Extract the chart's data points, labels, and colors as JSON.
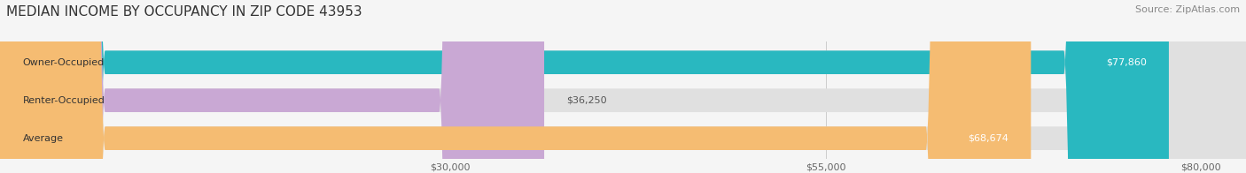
{
  "title": "MEDIAN INCOME BY OCCUPANCY IN ZIP CODE 43953",
  "source": "Source: ZipAtlas.com",
  "categories": [
    "Owner-Occupied",
    "Renter-Occupied",
    "Average"
  ],
  "values": [
    77860,
    36250,
    68674
  ],
  "bar_colors": [
    "#29b8c0",
    "#c9a8d4",
    "#f5bc72"
  ],
  "bar_labels": [
    "$77,860",
    "$36,250",
    "$68,674"
  ],
  "label_colors_inside": [
    "#ffffff",
    "#555555",
    "#ffffff"
  ],
  "background_color": "#f5f5f5",
  "bar_bg_color": "#e0e0e0",
  "xlim": [
    0,
    83000
  ],
  "xticks": [
    30000,
    55000,
    80000
  ],
  "xtick_labels": [
    "$30,000",
    "$55,000",
    "$80,000"
  ],
  "title_fontsize": 11,
  "source_fontsize": 8,
  "label_fontsize": 8,
  "tick_fontsize": 8,
  "category_fontsize": 8
}
